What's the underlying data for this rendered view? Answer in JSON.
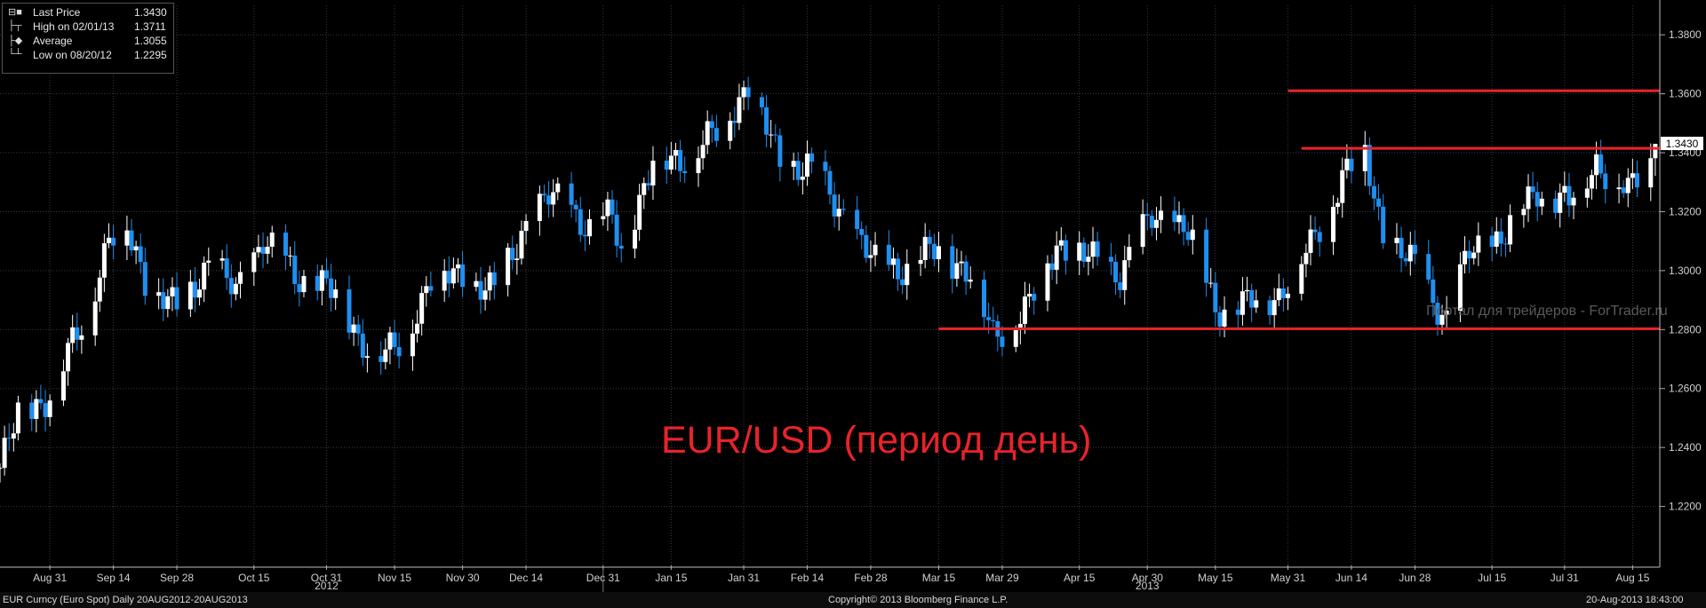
{
  "legend": {
    "items": [
      {
        "label": "Last Price",
        "value": "1.3430",
        "icon": "square-icon"
      },
      {
        "label": "High on 02/01/13",
        "value": "1.3711",
        "icon": "high-marker-icon"
      },
      {
        "label": "Average",
        "value": "1.3055",
        "icon": "average-marker-icon"
      },
      {
        "label": "Low on 08/20/12",
        "value": "1.2295",
        "icon": "low-marker-icon"
      }
    ]
  },
  "annotation_text": "EUR/USD (период день)",
  "watermark": "Портал для трейдеров - ForTrader.ru",
  "footer": {
    "left": "EUR Curncy (Euro Spot)  Daily 20AUG2012-20AUG2013",
    "center": "Copyright© 2013 Bloomberg Finance L.P.",
    "right": "20-Aug-2013 18:43:00"
  },
  "colors": {
    "background": "#000000",
    "up_candle": "#ffffff",
    "down_candle": "#1f8ff0",
    "level_lines": "#e8232b",
    "last_price_box": "#ffffff",
    "grid": "#3a3a3a",
    "axis_text": "#d0d0d0"
  },
  "chart_data": {
    "type": "candlestick",
    "title": "",
    "instrument": "EUR Curncy (Euro Spot)",
    "period": "Daily 20AUG2012-20AUG2013",
    "ylim": [
      1.2,
      1.39
    ],
    "y_ticks": [
      "1.2200",
      "1.2400",
      "1.2600",
      "1.2800",
      "1.3000",
      "1.3200",
      "1.3400",
      "1.3600",
      "1.3800"
    ],
    "x_ticks": [
      {
        "date": "2012-08-31",
        "label": "Aug 31"
      },
      {
        "date": "2012-09-14",
        "label": "Sep 14"
      },
      {
        "date": "2012-09-28",
        "label": "Sep 28"
      },
      {
        "date": "2012-10-15",
        "label": "Oct 15"
      },
      {
        "date": "2012-10-31",
        "label": "Oct 31"
      },
      {
        "date": "2012-11-15",
        "label": "Nov 15"
      },
      {
        "date": "2012-11-30",
        "label": "Nov 30"
      },
      {
        "date": "2012-12-14",
        "label": "Dec 14"
      },
      {
        "date": "2012-12-31",
        "label": "Dec 31"
      },
      {
        "date": "2013-01-15",
        "label": "Jan 15"
      },
      {
        "date": "2013-01-31",
        "label": "Jan 31"
      },
      {
        "date": "2013-02-14",
        "label": "Feb 14"
      },
      {
        "date": "2013-02-28",
        "label": "Feb 28"
      },
      {
        "date": "2013-03-15",
        "label": "Mar 15"
      },
      {
        "date": "2013-03-29",
        "label": "Mar 29"
      },
      {
        "date": "2013-04-15",
        "label": "Apr 15"
      },
      {
        "date": "2013-04-30",
        "label": "Apr 30"
      },
      {
        "date": "2013-05-15",
        "label": "May 15"
      },
      {
        "date": "2013-05-31",
        "label": "May 31"
      },
      {
        "date": "2013-06-14",
        "label": "Jun 14"
      },
      {
        "date": "2013-06-28",
        "label": "Jun 28"
      },
      {
        "date": "2013-07-15",
        "label": "Jul 15"
      },
      {
        "date": "2013-07-31",
        "label": "Jul 31"
      },
      {
        "date": "2013-08-15",
        "label": "Aug 15"
      }
    ],
    "year_labels": [
      {
        "date": "2012-10-31",
        "label": "2012"
      },
      {
        "date": "2013-04-30",
        "label": "2013"
      }
    ],
    "year_separator_date": "2012-12-31",
    "x_range": [
      "2012-08-20",
      "2013-08-21"
    ],
    "last_price": 1.343,
    "last_price_label": "1.3430",
    "levels": [
      {
        "value": 1.361,
        "from": "2013-05-31",
        "to": "2013-08-21"
      },
      {
        "value": 1.3415,
        "from": "2013-06-03",
        "to": "2013-08-21"
      },
      {
        "value": 1.2803,
        "from": "2013-03-15",
        "to": "2013-08-21"
      }
    ],
    "closes": [
      {
        "date": "2012-08-20",
        "close": 1.2331
      },
      {
        "date": "2012-08-24",
        "close": 1.2509
      },
      {
        "date": "2012-08-31",
        "close": 1.2577
      },
      {
        "date": "2012-09-07",
        "close": 1.2816
      },
      {
        "date": "2012-09-13",
        "close": 1.3106
      },
      {
        "date": "2012-09-17",
        "close": 1.3138
      },
      {
        "date": "2012-09-21",
        "close": 1.2976
      },
      {
        "date": "2012-09-28",
        "close": 1.2859
      },
      {
        "date": "2012-10-05",
        "close": 1.3036
      },
      {
        "date": "2012-10-11",
        "close": 1.292
      },
      {
        "date": "2012-10-17",
        "close": 1.3115
      },
      {
        "date": "2012-10-24",
        "close": 1.2975
      },
      {
        "date": "2012-10-31",
        "close": 1.2957
      },
      {
        "date": "2012-11-07",
        "close": 1.2776
      },
      {
        "date": "2012-11-13",
        "close": 1.2711
      },
      {
        "date": "2012-11-16",
        "close": 1.274
      },
      {
        "date": "2012-11-23",
        "close": 1.2973
      },
      {
        "date": "2012-11-30",
        "close": 1.2986
      },
      {
        "date": "2012-12-07",
        "close": 1.2925
      },
      {
        "date": "2012-12-14",
        "close": 1.3163
      },
      {
        "date": "2012-12-19",
        "close": 1.3245
      },
      {
        "date": "2012-12-24",
        "close": 1.3217
      },
      {
        "date": "2012-12-28",
        "close": 1.314
      },
      {
        "date": "2013-01-02",
        "close": 1.3181
      },
      {
        "date": "2013-01-04",
        "close": 1.3065
      },
      {
        "date": "2013-01-11",
        "close": 1.3364
      },
      {
        "date": "2013-01-17",
        "close": 1.3381
      },
      {
        "date": "2013-01-25",
        "close": 1.3463
      },
      {
        "date": "2013-02-01",
        "close": 1.3636
      },
      {
        "date": "2013-02-08",
        "close": 1.3364
      },
      {
        "date": "2013-02-14",
        "close": 1.3357
      },
      {
        "date": "2013-02-22",
        "close": 1.3189
      },
      {
        "date": "2013-03-01",
        "close": 1.3019
      },
      {
        "date": "2013-03-08",
        "close": 1.3012
      },
      {
        "date": "2013-03-15",
        "close": 1.3075
      },
      {
        "date": "2013-03-22",
        "close": 1.2988
      },
      {
        "date": "2013-03-27",
        "close": 1.2779
      },
      {
        "date": "2013-04-04",
        "close": 1.2879
      },
      {
        "date": "2013-04-10",
        "close": 1.3094
      },
      {
        "date": "2013-04-17",
        "close": 1.304
      },
      {
        "date": "2013-04-24",
        "close": 1.2995
      },
      {
        "date": "2013-05-01",
        "close": 1.3178
      },
      {
        "date": "2013-05-08",
        "close": 1.3159
      },
      {
        "date": "2013-05-15",
        "close": 1.2877
      },
      {
        "date": "2013-05-21",
        "close": 1.288
      },
      {
        "date": "2013-05-29",
        "close": 1.2921
      },
      {
        "date": "2013-06-05",
        "close": 1.308
      },
      {
        "date": "2013-06-12",
        "close": 1.3322
      },
      {
        "date": "2013-06-17",
        "close": 1.3394
      },
      {
        "date": "2013-06-21",
        "close": 1.3124
      },
      {
        "date": "2013-06-28",
        "close": 1.3011
      },
      {
        "date": "2013-07-05",
        "close": 1.2836
      },
      {
        "date": "2013-07-10",
        "close": 1.3058
      },
      {
        "date": "2013-07-18",
        "close": 1.3128
      },
      {
        "date": "2013-07-25",
        "close": 1.3276
      },
      {
        "date": "2013-08-01",
        "close": 1.3228
      },
      {
        "date": "2013-08-07",
        "close": 1.3373
      },
      {
        "date": "2013-08-14",
        "close": 1.3257
      },
      {
        "date": "2013-08-20",
        "close": 1.343
      }
    ]
  }
}
